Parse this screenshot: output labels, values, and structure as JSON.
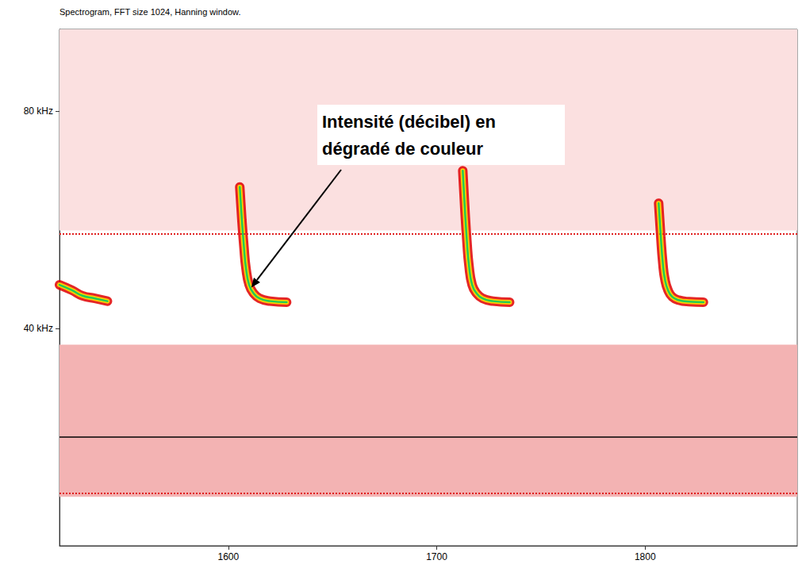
{
  "chart_data": {
    "type": "line",
    "title": "Spectrogram, FFT size 1024, Hanning window.",
    "xlim": [
      1519,
      1873
    ],
    "xticks": [
      1600,
      1700,
      1800
    ],
    "ylim": [
      0,
      95
    ],
    "yticks": [
      {
        "value": 40,
        "label": "40 kHz"
      },
      {
        "value": 80,
        "label": "80 kHz"
      }
    ],
    "grid": false,
    "series": [
      {
        "color": "#e00000",
        "x": [
          1519,
          1525,
          1530,
          1536,
          1542
        ],
        "values": [
          48,
          47,
          46,
          45.5,
          45
        ]
      },
      {
        "color": "#e00000",
        "x": [
          1605.5,
          1606.5,
          1607.5,
          1608.5,
          1610,
          1612,
          1615,
          1620,
          1628
        ],
        "values": [
          66,
          60,
          55,
          51,
          48,
          46.5,
          45.5,
          45,
          44.8
        ]
      },
      {
        "color": "#e00000",
        "x": [
          1712.5,
          1713.5,
          1714.5,
          1715.5,
          1717,
          1719,
          1722,
          1727,
          1735
        ],
        "values": [
          69,
          62,
          56,
          51.5,
          48,
          46.5,
          45.5,
          45,
          44.8
        ]
      },
      {
        "color": "#e00000",
        "x": [
          1806.5,
          1807.5,
          1808.5,
          1809.5,
          1811,
          1813,
          1816,
          1821,
          1828
        ],
        "values": [
          63,
          57,
          52,
          49,
          47,
          45.8,
          45.2,
          44.9,
          44.8
        ]
      }
    ],
    "hlines": [
      {
        "value": 20,
        "color": "#000000",
        "line_style": "solid"
      },
      {
        "value": 57.4,
        "color": "#e02020",
        "line_style": "dotted"
      },
      {
        "value": 9.6,
        "color": "#e02020",
        "line_style": "dotted"
      }
    ],
    "noise_bands": [
      {
        "from": 9,
        "to": 37,
        "color": "#f3b3b3"
      },
      {
        "from": 58,
        "to": 95,
        "color": "#fbe0e0"
      }
    ],
    "annotation": {
      "text": "Intensité (décibel) en dégradé de couleur",
      "x": 1611,
      "y": 47.5
    }
  }
}
